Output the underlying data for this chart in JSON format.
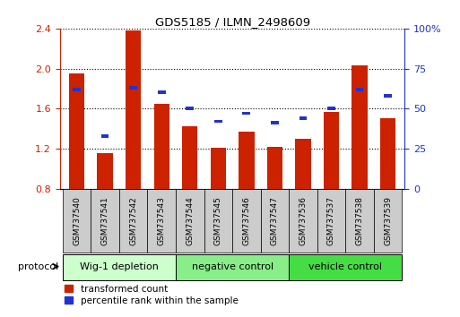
{
  "title": "GDS5185 / ILMN_2498609",
  "samples": [
    "GSM737540",
    "GSM737541",
    "GSM737542",
    "GSM737543",
    "GSM737544",
    "GSM737545",
    "GSM737546",
    "GSM737547",
    "GSM737536",
    "GSM737537",
    "GSM737538",
    "GSM737539"
  ],
  "red_values": [
    1.95,
    1.15,
    2.38,
    1.65,
    1.42,
    1.21,
    1.37,
    1.22,
    1.3,
    1.57,
    2.03,
    1.5
  ],
  "blue_pct": [
    62,
    33,
    63,
    60,
    50,
    42,
    47,
    41,
    44,
    50,
    62,
    58
  ],
  "ylim_left": [
    0.8,
    2.4
  ],
  "ylim_right": [
    0,
    100
  ],
  "yticks_left": [
    0.8,
    1.2,
    1.6,
    2.0,
    2.4
  ],
  "yticks_right": [
    0,
    25,
    50,
    75,
    100
  ],
  "ytick_labels_right": [
    "0",
    "25",
    "50",
    "75",
    "100%"
  ],
  "groups": [
    {
      "label": "Wig-1 depletion",
      "indices": [
        0,
        3
      ],
      "color": "#ccffcc"
    },
    {
      "label": "negative control",
      "indices": [
        4,
        7
      ],
      "color": "#88ee88"
    },
    {
      "label": "vehicle control",
      "indices": [
        8,
        11
      ],
      "color": "#44dd44"
    }
  ],
  "bar_color_red": "#cc2200",
  "bar_color_blue": "#2233cc",
  "bar_width": 0.55,
  "base_value": 0.8,
  "protocol_label": "protocol",
  "legend_red": "transformed count",
  "legend_blue": "percentile rank within the sample",
  "tick_box_color": "#cccccc",
  "spine_color": "#000000"
}
